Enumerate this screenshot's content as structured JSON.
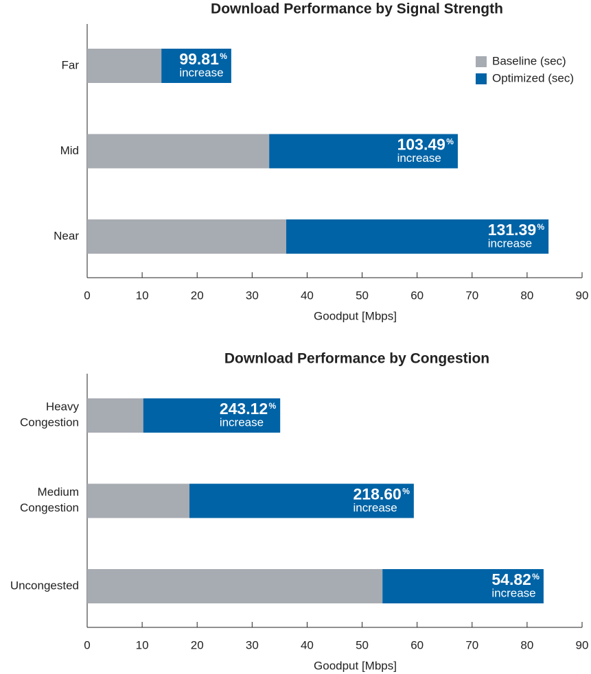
{
  "chart_data": [
    {
      "type": "bar",
      "orientation": "horizontal",
      "stacked": true,
      "title": "Download Performance by Signal Strength",
      "categories": [
        "Far",
        "Mid",
        "Near"
      ],
      "series": [
        {
          "name": "Baseline (sec)",
          "color": "#a7abb2",
          "values": [
            13.5,
            33.1,
            36.2
          ]
        },
        {
          "name": "Optimized (sec)",
          "color": "#0063a6",
          "values": [
            12.7,
            34.3,
            47.7
          ]
        }
      ],
      "annotations": [
        {
          "value": "99.81",
          "unit": "%",
          "text": "increase"
        },
        {
          "value": "103.49",
          "unit": "%",
          "text": "increase"
        },
        {
          "value": "131.39",
          "unit": "%",
          "text": "increase"
        }
      ],
      "xlabel": "Goodput [Mbps]",
      "xlim": [
        0,
        90
      ],
      "xticks": [
        0,
        10,
        20,
        30,
        40,
        50,
        60,
        70,
        80,
        90
      ],
      "legend": "upper right"
    },
    {
      "type": "bar",
      "orientation": "horizontal",
      "stacked": true,
      "title": "Download Performance by Congestion",
      "categories": [
        "Heavy Congestion",
        "Medium Congestion",
        "Uncongested"
      ],
      "series": [
        {
          "color": "#a7abb2",
          "values": [
            10.2,
            18.6,
            53.7
          ]
        },
        {
          "color": "#0063a6",
          "values": [
            24.9,
            40.8,
            29.3
          ]
        }
      ],
      "annotations": [
        {
          "value": "243.12",
          "unit": "%",
          "text": "increase"
        },
        {
          "value": "218.60",
          "unit": "%",
          "text": "increase"
        },
        {
          "value": "54.82",
          "unit": "%",
          "text": "increase"
        }
      ],
      "xlabel": "Goodput [Mbps]",
      "xlim": [
        0,
        90
      ],
      "xticks": [
        0,
        10,
        20,
        30,
        40,
        50,
        60,
        70,
        80,
        90
      ]
    }
  ]
}
